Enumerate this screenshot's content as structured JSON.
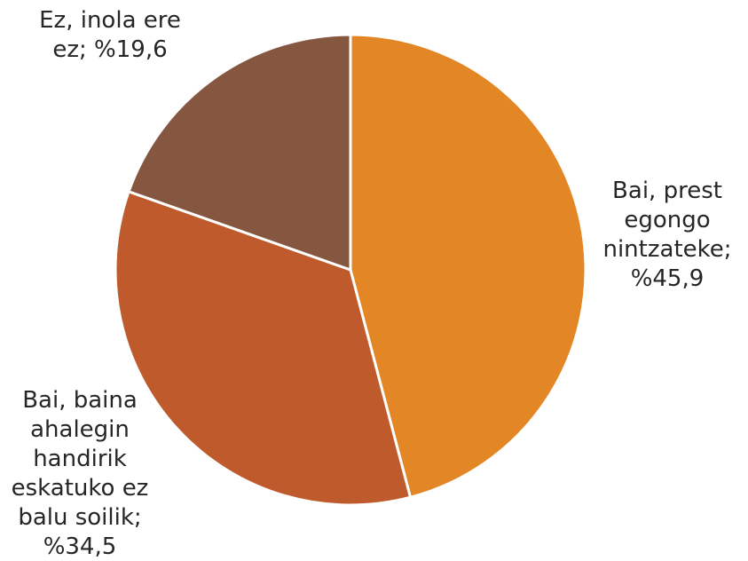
{
  "chart_data": {
    "type": "pie",
    "title": "",
    "start_angle_deg": 0,
    "direction": "clockwise",
    "slices": [
      {
        "category": "Bai, prest egongo nintzateke",
        "value": 45.9,
        "color": "#E38726",
        "label_lines": [
          "Bai, prest",
          "egongo",
          "nintzateke;",
          "%45,9"
        ]
      },
      {
        "category": "Bai, baina ahalegin handirik eskatuko ez balu soilik",
        "value": 34.5,
        "color": "#BE5A2C",
        "label_lines": [
          "Bai, baina",
          "ahalegin",
          "handirik",
          "eskatuko ez",
          "balu soilik;",
          "%34,5"
        ]
      },
      {
        "category": "Ez, inola ere ez",
        "value": 19.6,
        "color": "#855740",
        "label_lines": [
          "Ez, inola ere",
          "ez; %19,6"
        ]
      }
    ]
  }
}
